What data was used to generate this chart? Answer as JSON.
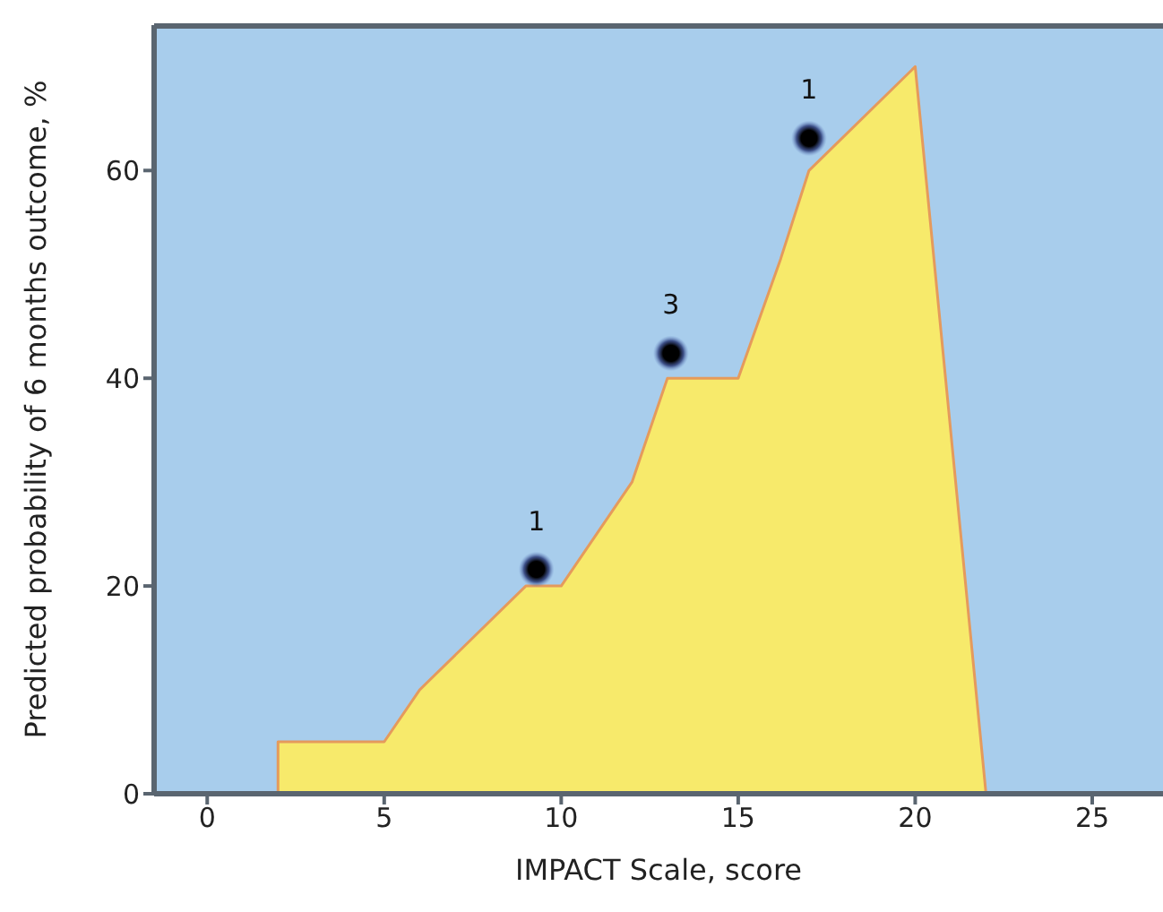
{
  "chart_data": {
    "type": "area",
    "xlabel": "IMPACT Scale, score",
    "ylabel": "Predicted probability of 6 months outcome, %",
    "xlim": [
      -1.5,
      27
    ],
    "xticks": [
      0,
      5,
      10,
      15,
      20,
      25
    ],
    "ylim": [
      0,
      74
    ],
    "yticks": [
      0,
      20,
      40,
      60
    ],
    "grid": false,
    "legend": false,
    "series": [
      {
        "color": "#f7ea6b",
        "x": [
          2,
          2,
          5,
          6,
          9,
          10,
          12,
          13,
          15,
          16.2,
          17,
          20,
          22
        ],
        "values": [
          0,
          5,
          5,
          10,
          20,
          20,
          30,
          40,
          40,
          51.5,
          60,
          70,
          0
        ]
      },
      {
        "type": "scatter",
        "color": "#000000",
        "x": [
          9.3,
          13.1,
          17
        ],
        "values": [
          21.6,
          42.4,
          63.1
        ]
      }
    ],
    "annotations": [
      {
        "text": "1",
        "x": 9.3,
        "y": 21.6
      },
      {
        "text": "3",
        "x": 13.1,
        "y": 42.4
      },
      {
        "text": "1",
        "x": 17,
        "y": 63.1
      }
    ]
  }
}
